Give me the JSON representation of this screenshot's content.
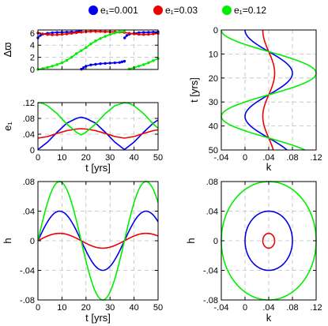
{
  "legend": {
    "entries": [
      {
        "label": "e₁=0.001",
        "color": "#0000ee"
      },
      {
        "label": "e₁=0.03",
        "color": "#ee0000"
      },
      {
        "label": "e₁=0.12",
        "color": "#00ee00"
      }
    ]
  },
  "chart_data": [
    {
      "panel": "varpi-vs-t",
      "type": "scatter",
      "ylabel": "Δϖ",
      "xlabel": "",
      "xlim": [
        0,
        50
      ],
      "ylim": [
        0,
        6.5
      ],
      "xticks": [
        0,
        10,
        20,
        30,
        40,
        50
      ],
      "yticks": [
        0,
        2,
        4,
        6
      ],
      "grid": true,
      "period": 36,
      "series": [
        {
          "name": "e₁=0.001",
          "color": "#0000ee",
          "x": [
            0,
            1,
            2,
            4,
            6,
            8,
            10,
            12,
            14,
            16,
            17,
            18,
            18.1,
            19,
            20,
            22,
            24,
            26,
            28,
            30,
            32,
            34,
            35,
            36,
            36.1,
            37,
            38,
            40,
            42,
            44,
            46,
            48,
            50
          ],
          "y": [
            5.2,
            5.6,
            5.8,
            5.95,
            6.05,
            6.1,
            6.12,
            6.15,
            6.18,
            6.2,
            6.25,
            6.28,
            0.05,
            0.3,
            0.55,
            0.75,
            0.85,
            0.95,
            1.0,
            1.05,
            1.1,
            1.15,
            1.25,
            1.35,
            5.2,
            5.6,
            5.8,
            5.95,
            6.05,
            6.1,
            6.12,
            6.15,
            6.18
          ]
        },
        {
          "name": "e₁=0.03",
          "color": "#ee0000",
          "x": [
            0,
            2,
            4,
            6,
            8,
            10,
            12,
            14,
            16,
            18,
            20,
            22,
            24,
            26,
            28,
            30,
            32,
            34,
            36,
            38,
            40,
            42,
            44,
            46,
            48,
            50
          ],
          "y": [
            6.0,
            5.85,
            5.75,
            5.7,
            5.72,
            5.78,
            5.85,
            5.95,
            6.05,
            6.15,
            6.22,
            6.28,
            6.28,
            6.25,
            6.22,
            6.2,
            6.18,
            6.15,
            6.1,
            5.95,
            5.85,
            5.78,
            5.75,
            5.78,
            5.85,
            5.95
          ]
        },
        {
          "name": "e₁=0.12",
          "color": "#00ee00",
          "x": [
            0,
            2,
            4,
            6,
            8,
            10,
            12,
            14,
            16,
            18,
            20,
            22,
            24,
            26,
            28,
            30,
            32,
            34,
            36,
            38,
            40,
            42,
            44,
            46,
            48,
            50
          ],
          "y": [
            0.0,
            0.15,
            0.35,
            0.55,
            0.8,
            1.1,
            1.5,
            2.0,
            2.6,
            3.1,
            3.6,
            4.2,
            4.7,
            5.1,
            5.45,
            5.75,
            6.0,
            6.2,
            6.28,
            0.1,
            0.3,
            0.55,
            0.8,
            1.1,
            1.45,
            1.8
          ]
        }
      ]
    },
    {
      "panel": "e1-vs-t",
      "type": "line",
      "ylabel": "e₁",
      "xlabel": "t [yrs]",
      "xlim": [
        0,
        50
      ],
      "ylim": [
        0,
        0.12
      ],
      "xticks": [
        0,
        10,
        20,
        30,
        40,
        50
      ],
      "yticks": [
        0,
        0.04,
        0.08,
        0.12
      ],
      "grid": true,
      "period": 36,
      "series": [
        {
          "name": "e₁=0.001",
          "color": "#0000ee",
          "x": [
            0,
            4,
            8,
            12,
            16,
            18,
            20,
            24,
            28,
            32,
            36,
            40,
            44,
            48,
            50
          ],
          "y": [
            0.001,
            0.02,
            0.045,
            0.068,
            0.08,
            0.083,
            0.08,
            0.068,
            0.045,
            0.02,
            0.001,
            0.02,
            0.045,
            0.068,
            0.076
          ]
        },
        {
          "name": "e₁=0.03",
          "color": "#ee0000",
          "x": [
            0,
            4,
            8,
            12,
            16,
            18,
            20,
            24,
            28,
            32,
            36,
            40,
            44,
            48,
            50
          ],
          "y": [
            0.03,
            0.034,
            0.042,
            0.049,
            0.053,
            0.054,
            0.053,
            0.049,
            0.042,
            0.034,
            0.03,
            0.034,
            0.042,
            0.049,
            0.051
          ]
        },
        {
          "name": "e₁=0.12",
          "color": "#00ee00",
          "x": [
            0,
            2,
            4,
            8,
            12,
            16,
            18,
            20,
            24,
            28,
            32,
            36,
            38,
            40,
            44,
            48,
            50
          ],
          "y": [
            0.12,
            0.118,
            0.112,
            0.092,
            0.066,
            0.045,
            0.038,
            0.045,
            0.066,
            0.092,
            0.112,
            0.12,
            0.118,
            0.112,
            0.092,
            0.066,
            0.055
          ]
        }
      ]
    },
    {
      "panel": "t-vs-k",
      "type": "line",
      "ylabel": "t [yrs]",
      "xlabel": "k",
      "xlim": [
        -0.04,
        0.12
      ],
      "ylim": [
        50,
        0
      ],
      "xticks": [
        -0.04,
        0,
        0.04,
        0.08,
        0.12
      ],
      "yticks": [
        0,
        10,
        20,
        30,
        40,
        50
      ],
      "grid": true
    },
    {
      "panel": "h-vs-t",
      "type": "line",
      "ylabel": "h",
      "xlabel": "t [yrs]",
      "xlim": [
        0,
        50
      ],
      "ylim": [
        -0.08,
        0.08
      ],
      "xticks": [
        0,
        10,
        20,
        30,
        40,
        50
      ],
      "yticks": [
        -0.08,
        -0.04,
        0,
        0.04,
        0.08
      ],
      "grid": true
    },
    {
      "panel": "h-vs-k",
      "type": "line",
      "ylabel": "h",
      "xlabel": "k",
      "xlim": [
        -0.04,
        0.12
      ],
      "ylim": [
        -0.08,
        0.08
      ],
      "xticks": [
        -0.04,
        0,
        0.04,
        0.08,
        0.12
      ],
      "yticks": [
        -0.08,
        -0.04,
        0,
        0.04,
        0.08
      ],
      "grid": true
    }
  ],
  "orbits": {
    "period": 36,
    "center_k": 0.04,
    "series": [
      {
        "name": "e₁=0.001",
        "color": "#0000ee",
        "amplitude": 0.04
      },
      {
        "name": "e₁=0.03",
        "color": "#ee0000",
        "amplitude": 0.01
      },
      {
        "name": "e₁=0.12",
        "color": "#00ee00",
        "amplitude": 0.08
      }
    ]
  }
}
